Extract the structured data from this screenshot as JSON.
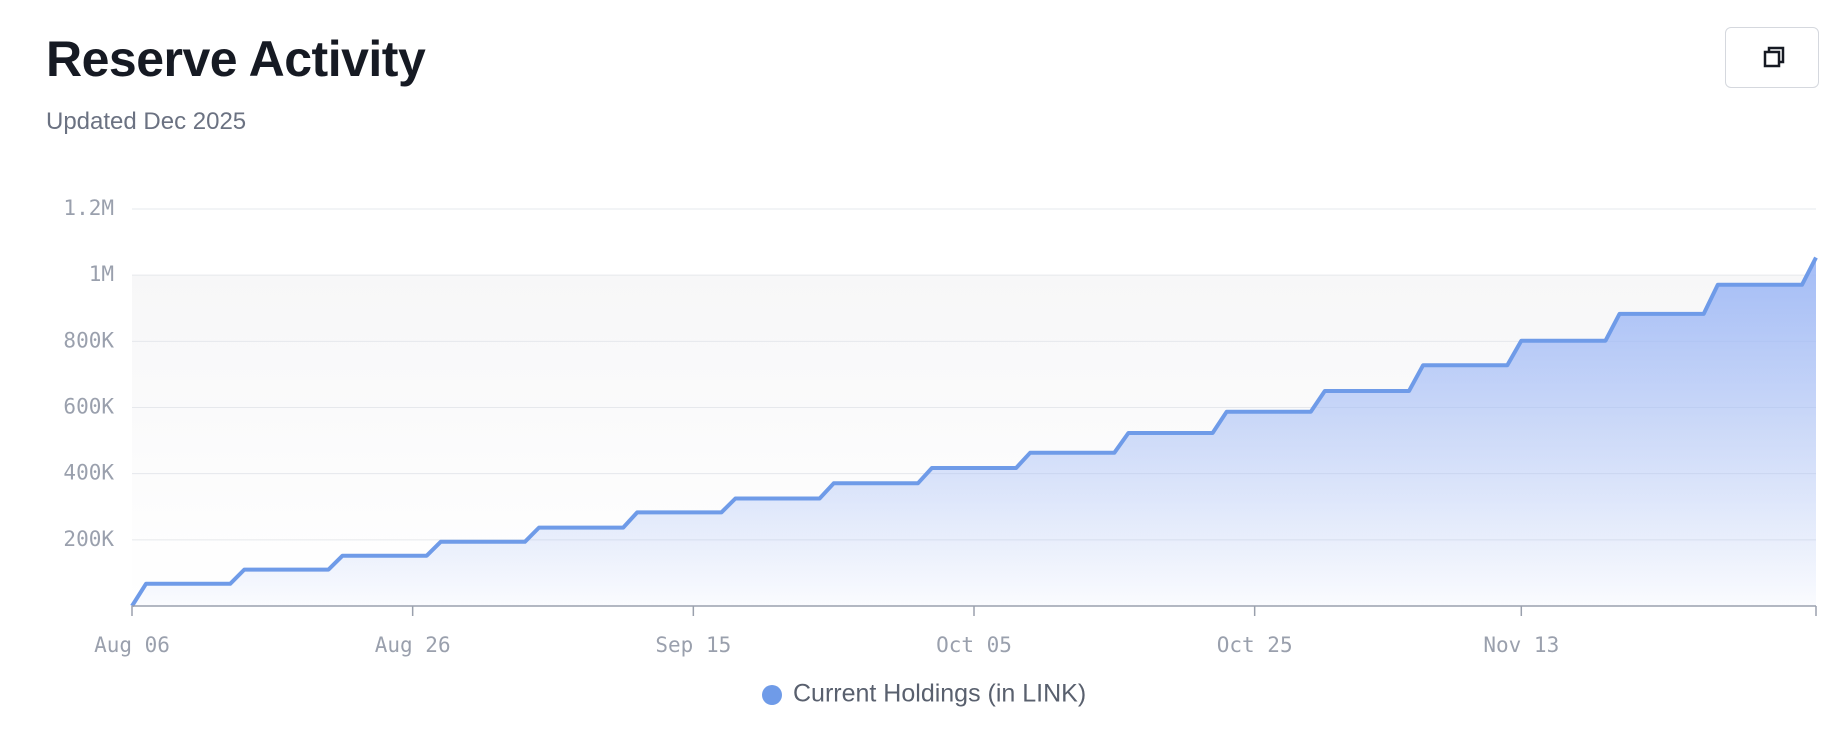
{
  "chart_data": {
    "type": "area",
    "title": "Reserve Activity",
    "subtitle": "Updated Dec 2025",
    "x": [
      "Aug 06",
      "Aug 07",
      "Aug 13",
      "Aug 14",
      "Aug 20",
      "Aug 21",
      "Aug 27",
      "Aug 28",
      "Sep 03",
      "Sep 04",
      "Sep 10",
      "Sep 11",
      "Sep 17",
      "Sep 18",
      "Sep 24",
      "Sep 25",
      "Oct 01",
      "Oct 02",
      "Oct 08",
      "Oct 09",
      "Oct 15",
      "Oct 16",
      "Oct 22",
      "Oct 23",
      "Oct 29",
      "Oct 30",
      "Nov 05",
      "Nov 06",
      "Nov 12",
      "Nov 13",
      "Nov 19",
      "Nov 20",
      "Nov 26",
      "Nov 27",
      "Dec 03",
      "Dec 04"
    ],
    "series": [
      {
        "name": "Current Holdings (in LINK)",
        "color": "#6f9be8",
        "values": [
          0,
          67000,
          67000,
          110000,
          110000,
          152000,
          152000,
          194000,
          194000,
          237000,
          237000,
          283000,
          283000,
          325000,
          325000,
          371000,
          371000,
          417000,
          417000,
          463000,
          463000,
          523000,
          523000,
          587000,
          587000,
          650000,
          650000,
          728000,
          728000,
          802000,
          802000,
          883000,
          883000,
          971000,
          971000,
          1053000
        ]
      }
    ],
    "xlim": [
      "Aug 06",
      "Dec 04"
    ],
    "xticks": [
      "Aug 06",
      "Aug 26",
      "Sep 15",
      "Oct 05",
      "Oct 25",
      "Nov 13"
    ],
    "ylim": [
      0,
      1200000
    ],
    "yticks": [
      {
        "value": 200000,
        "label": "200K"
      },
      {
        "value": 400000,
        "label": "400K"
      },
      {
        "value": 600000,
        "label": "600K"
      },
      {
        "value": 800000,
        "label": "800K"
      },
      {
        "value": 1000000,
        "label": "1M"
      },
      {
        "value": 1200000,
        "label": "1.2M"
      }
    ],
    "grid": true
  }
}
